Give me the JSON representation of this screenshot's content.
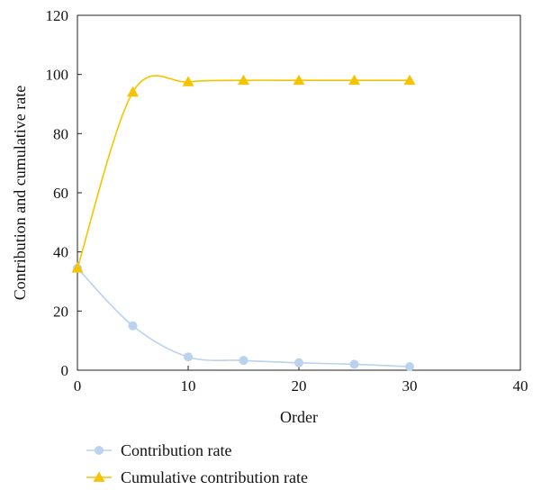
{
  "chart_data": {
    "type": "line",
    "title": "",
    "xlabel": "Order",
    "ylabel": "Contribution and cumulative rate",
    "xlim": [
      0,
      40
    ],
    "ylim": [
      0,
      120
    ],
    "x_ticks": [
      0,
      10,
      20,
      30,
      40
    ],
    "y_ticks": [
      0,
      20,
      40,
      60,
      80,
      100,
      120
    ],
    "grid": false,
    "legend_position": "bottom",
    "smooth": true,
    "series": [
      {
        "name": "Contribution rate",
        "color": "#b9d3ee",
        "marker": "circle",
        "x": [
          0,
          5,
          10,
          15,
          20,
          25,
          30
        ],
        "y": [
          34.5,
          15.0,
          4.5,
          3.3,
          2.5,
          2.0,
          1.2
        ]
      },
      {
        "name": "Cumulative contribution rate",
        "color": "#f5c400",
        "marker": "triangle",
        "x": [
          0,
          5,
          10,
          15,
          20,
          25,
          30
        ],
        "y": [
          34.5,
          94.0,
          97.5,
          98.0,
          98.0,
          98.0,
          98.0
        ]
      }
    ]
  }
}
